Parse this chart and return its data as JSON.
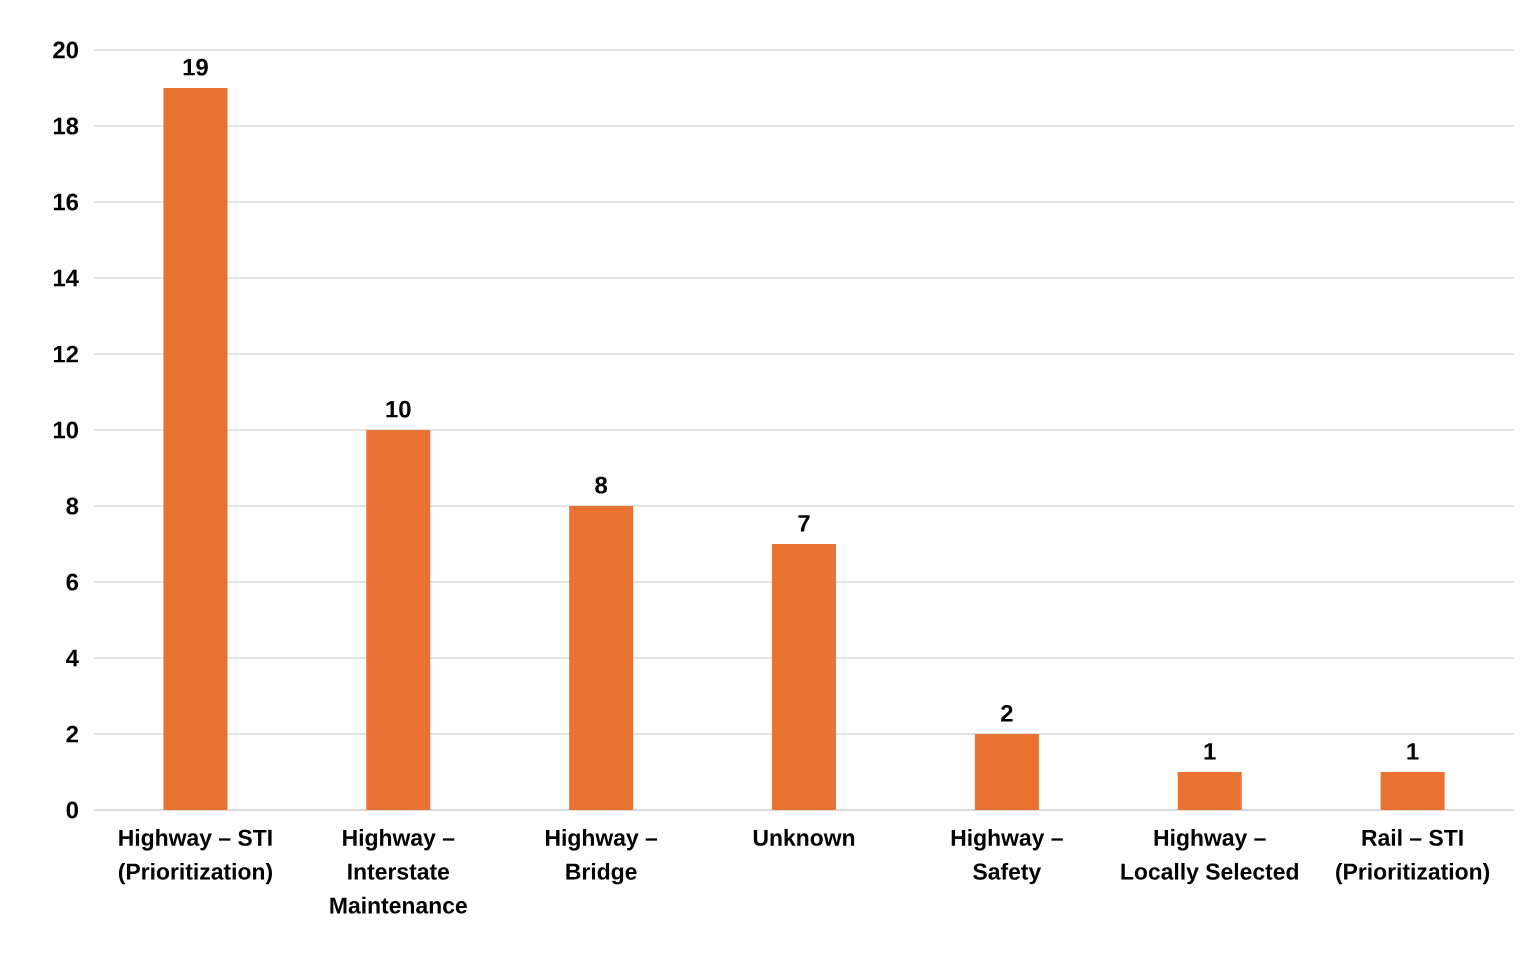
{
  "chart_data": {
    "type": "bar",
    "categories": [
      "Highway – STI (Prioritization)",
      "Highway – Interstate Maintenance",
      "Highway – Bridge",
      "Unknown",
      "Highway – Safety",
      "Highway – Locally Selected",
      "Rail – STI (Prioritization)"
    ],
    "values": [
      19,
      10,
      8,
      7,
      2,
      1,
      1
    ],
    "color": "#e97132",
    "ylim": [
      0,
      20
    ],
    "yticks": [
      0,
      2,
      4,
      6,
      8,
      10,
      12,
      14,
      16,
      18,
      20
    ],
    "grid": "y",
    "data_labels": true
  }
}
